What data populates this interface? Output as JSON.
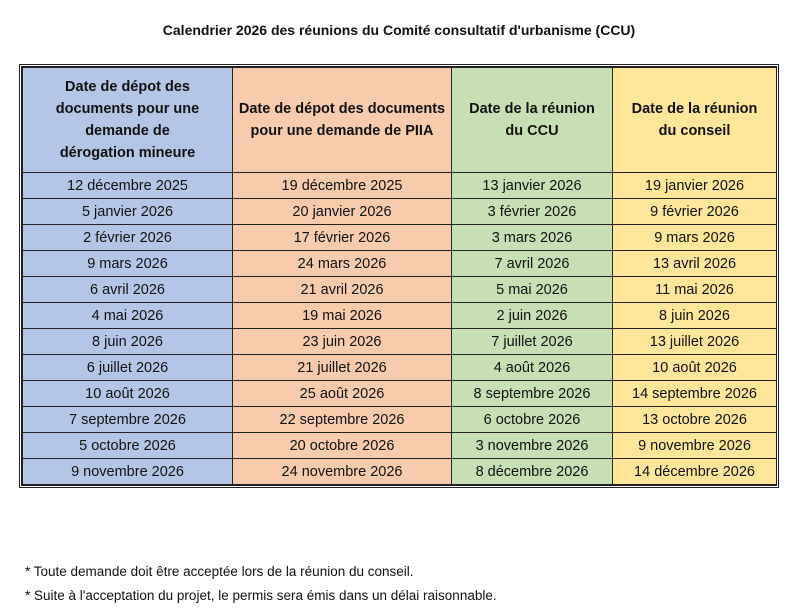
{
  "title": "Calendrier 2026 des réunions du Comité consultatif d'urbanisme (CCU)",
  "headers": [
    "Date de dépot des documents pour une demande de dérogation mineure",
    "Date de dépot des documents pour une demande de PIIA",
    "Date de la réunion du CCU",
    "Date de la réunion du conseil"
  ],
  "colors": [
    "#b4c6e7",
    "#f8cbad",
    "#c6e0b4",
    "#ffe699"
  ],
  "rows": [
    [
      "12 décembre 2025",
      "19 décembre 2025",
      "13 janvier 2026",
      "19 janvier 2026"
    ],
    [
      "5 janvier 2026",
      "20 janvier 2026",
      "3 février 2026",
      "9 février 2026"
    ],
    [
      "2 février 2026",
      "17 février 2026",
      "3 mars 2026",
      "9 mars 2026"
    ],
    [
      "9 mars 2026",
      "24 mars 2026",
      "7 avril 2026",
      "13 avril 2026"
    ],
    [
      "6 avril 2026",
      "21 avril 2026",
      "5 mai 2026",
      "11 mai 2026"
    ],
    [
      "4 mai 2026",
      "19 mai 2026",
      "2 juin 2026",
      "8 juin 2026"
    ],
    [
      "8 juin 2026",
      "23 juin 2026",
      "7 juillet 2026",
      "13 juillet 2026"
    ],
    [
      "6 juillet 2026",
      "21 juillet 2026",
      "4 août 2026",
      "10 août 2026"
    ],
    [
      "10 août 2026",
      "25 août 2026",
      "8 septembre 2026",
      "14 septembre 2026"
    ],
    [
      "7 septembre 2026",
      "22 septembre 2026",
      "6 octobre 2026",
      "13 octobre 2026"
    ],
    [
      "5 octobre 2026",
      "20 octobre 2026",
      "3 novembre 2026",
      "9 novembre 2026"
    ],
    [
      "9 novembre 2026",
      "24 novembre 2026",
      "8 décembre 2026",
      "14 décembre 2026"
    ]
  ],
  "notes": [
    "*  Toute demande doit être acceptée lors de la réunion du conseil.",
    "*  Suite à l'acceptation du projet, le permis sera émis dans un délai raisonnable."
  ]
}
